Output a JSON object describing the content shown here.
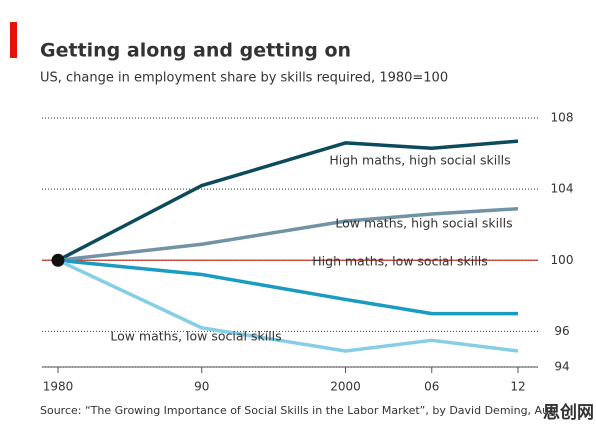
{
  "chart_data": {
    "type": "line",
    "title": "Getting along and getting on",
    "subtitle": "US, change in employment share by skills required, 1980=100",
    "source": "Source: “The Growing Importance of Social Skills in the Labor Market”, by David Deming, Aug",
    "watermark": "思创网",
    "x": [
      1980,
      1990,
      2000,
      2006,
      2012
    ],
    "xlim": [
      1980,
      2012
    ],
    "xticks": [
      1980,
      {
        "value": 1990,
        "label": "90"
      },
      2000,
      {
        "value": 2006,
        "label": "06"
      },
      {
        "value": 2012,
        "label": "12"
      }
    ],
    "ylim": [
      94,
      108
    ],
    "yticks": [
      94,
      96,
      100,
      104,
      108
    ],
    "baseline": 100,
    "grid": true,
    "series": [
      {
        "name": "High maths, high social skills",
        "color": "#0c4a5c",
        "values": [
          100,
          104.2,
          106.6,
          106.3,
          106.7
        ]
      },
      {
        "name": "Low maths, high social skills",
        "color": "#7293a6",
        "values": [
          100,
          100.9,
          102.2,
          102.6,
          102.9
        ]
      },
      {
        "name": "High maths, low social skills",
        "color": "#1a9cc2",
        "values": [
          100,
          99.2,
          97.8,
          97.0,
          97.0
        ]
      },
      {
        "name": "Low maths, low social skills",
        "color": "#86cde6",
        "values": [
          100,
          96.2,
          94.9,
          95.5,
          94.9
        ]
      }
    ]
  }
}
